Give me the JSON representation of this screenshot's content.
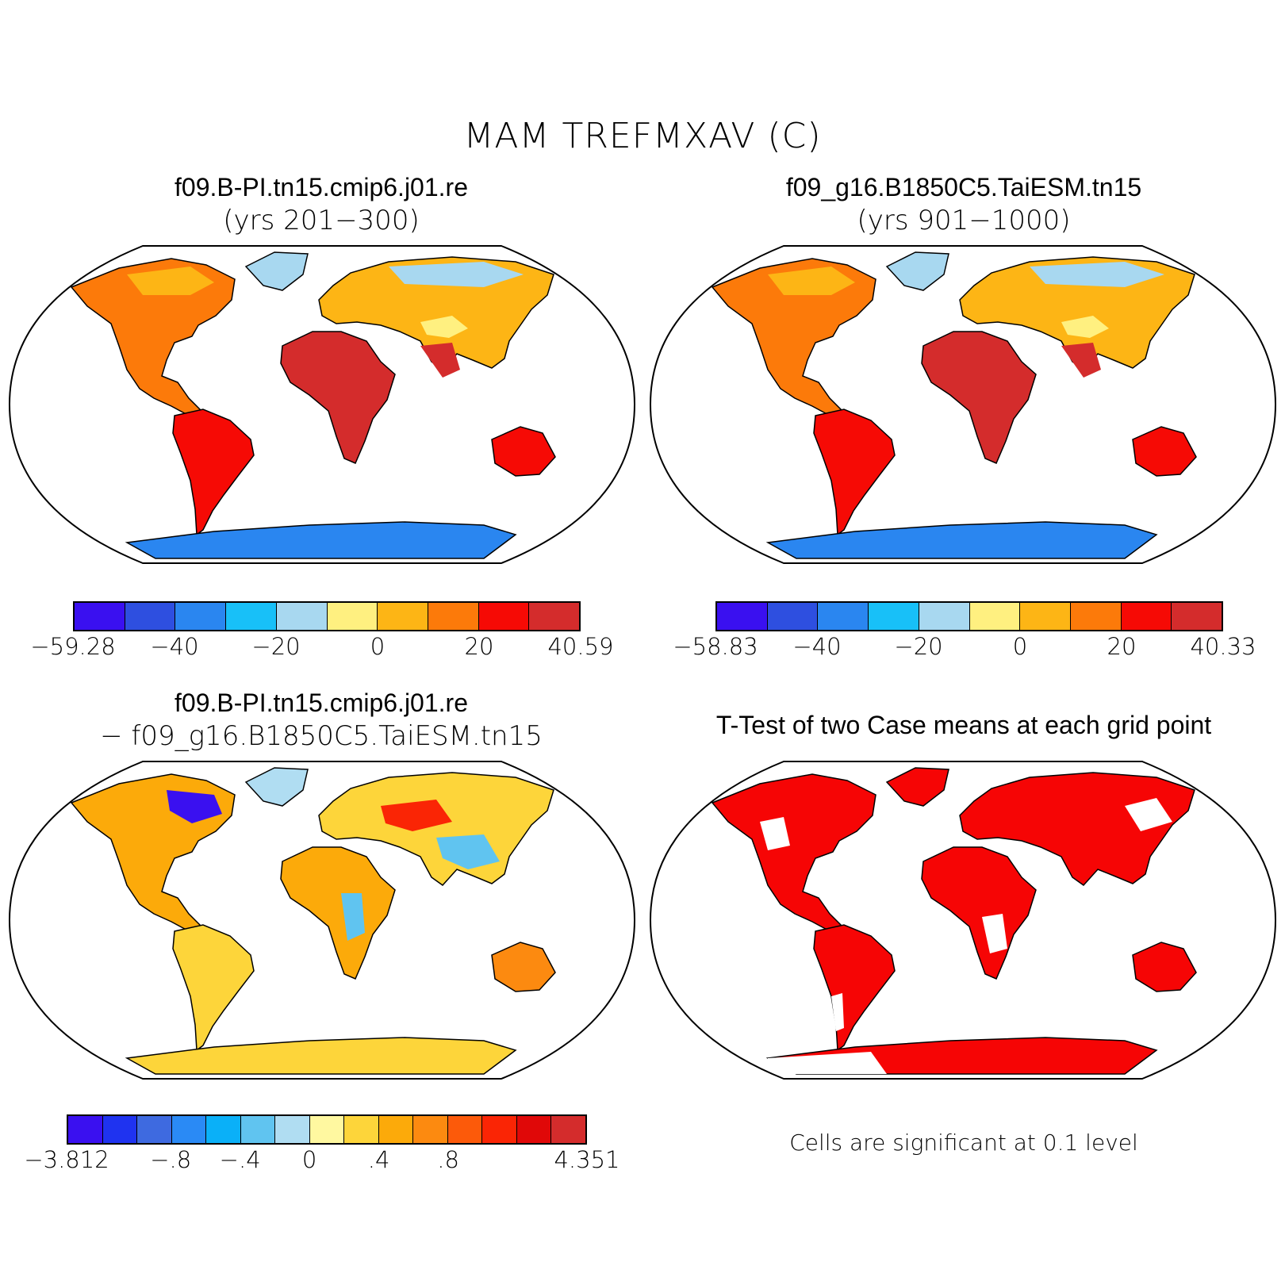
{
  "title": "MAM TREFMXAV (C)",
  "panels": [
    {
      "id": "case1",
      "title": "f09.B-PI.tn15.cmip6.j01.re",
      "subtitle": "(yrs 201−300)",
      "colorbar": {
        "colors": [
          "#3a10f0",
          "#2e4fe0",
          "#2a86f0",
          "#18c0f8",
          "#a8d8f0",
          "#fff080",
          "#fdb515",
          "#fc7a0a",
          "#f60a05",
          "#d42c2c"
        ],
        "tick_labels": [
          "−59.28",
          "−40",
          "−20",
          "0",
          "20",
          "40.59"
        ],
        "tick_values": [
          -59.28,
          -40,
          -20,
          0,
          20,
          40.59
        ]
      }
    },
    {
      "id": "case2",
      "title": "f09_g16.B1850C5.TaiESM.tn15",
      "subtitle": "(yrs 901−1000)",
      "colorbar": {
        "colors": [
          "#3a10f0",
          "#2e4fe0",
          "#2a86f0",
          "#18c0f8",
          "#a8d8f0",
          "#fff080",
          "#fdb515",
          "#fc7a0a",
          "#f60a05",
          "#d42c2c"
        ],
        "tick_labels": [
          "−58.83",
          "−40",
          "−20",
          "0",
          "20",
          "40.33"
        ],
        "tick_values": [
          -58.83,
          -40,
          -20,
          0,
          20,
          40.33
        ]
      }
    },
    {
      "id": "diff",
      "title": "f09.B-PI.tn15.cmip6.j01.re",
      "subtitle": "− f09_g16.B1850C5.TaiESM.tn15",
      "colorbar": {
        "colors": [
          "#3a10f0",
          "#1f33f0",
          "#3e6ae0",
          "#2a8af5",
          "#0ab0f8",
          "#60c4f0",
          "#b0ddf2",
          "#fff8a0",
          "#fdd53a",
          "#fcaa0a",
          "#fc8a10",
          "#fc5a0a",
          "#fa2505",
          "#e00808",
          "#d42c2c"
        ],
        "tick_labels": [
          "−3.812",
          "−.8",
          "−.4",
          "0",
          ".4",
          ".8",
          "4.351"
        ],
        "tick_values": [
          -3.812,
          -0.8,
          -0.4,
          0,
          0.4,
          0.8,
          4.351
        ]
      }
    },
    {
      "id": "ttest",
      "title": "T-Test of two Case means at each grid point",
      "note": "Cells are significant at 0.1 level",
      "significant_color": "#f60505"
    }
  ]
}
